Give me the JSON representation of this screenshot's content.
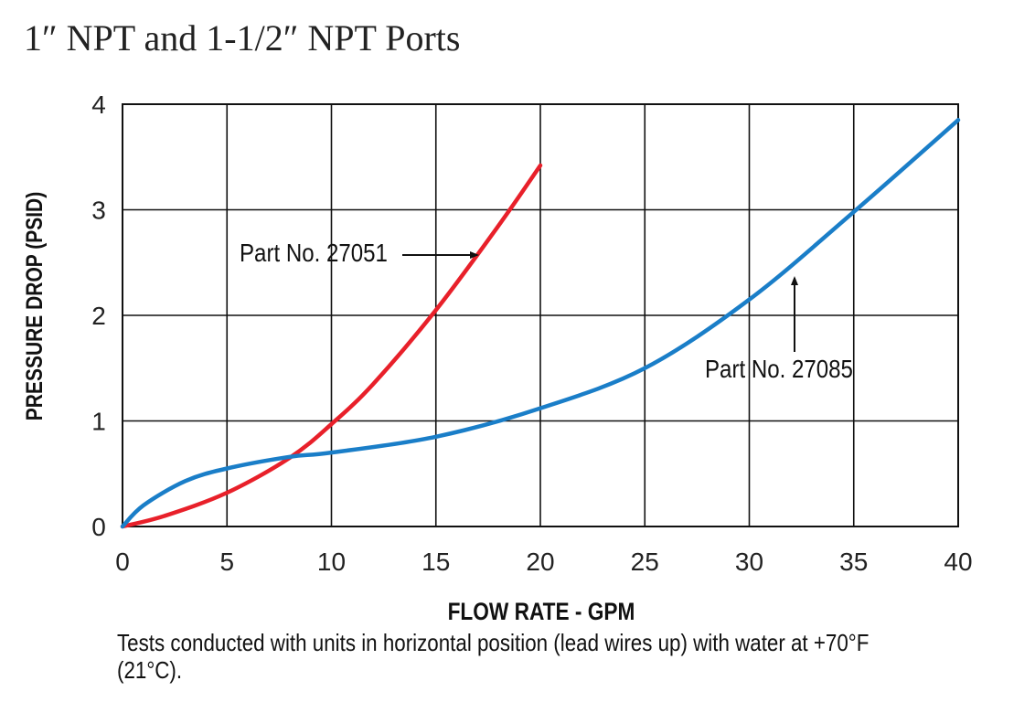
{
  "title": "1″ NPT and 1-1/2″ NPT Ports",
  "caption": "Tests conducted with units in horizontal position (lead wires up) with water at +70°F (21°C).",
  "chart_data": {
    "type": "line",
    "xlabel": "FLOW RATE - GPM",
    "ylabel": "PRESSURE DROP (PSID)",
    "xlim": [
      0,
      40
    ],
    "ylim": [
      0,
      4
    ],
    "xticks": [
      0,
      5,
      10,
      15,
      20,
      25,
      30,
      35,
      40
    ],
    "yticks": [
      0,
      1,
      2,
      3,
      4
    ],
    "grid": true,
    "series": [
      {
        "name": "Part No. 27051",
        "color": "#e8202a",
        "x": [
          0,
          2,
          5,
          8,
          10,
          12,
          15,
          18,
          20
        ],
        "y": [
          0,
          0.1,
          0.32,
          0.65,
          0.97,
          1.35,
          2.05,
          2.85,
          3.42
        ]
      },
      {
        "name": "Part No. 27085",
        "color": "#1a7ec8",
        "x": [
          0,
          1,
          3,
          5,
          8,
          10,
          15,
          20,
          25,
          30,
          35,
          40
        ],
        "y": [
          0,
          0.2,
          0.43,
          0.55,
          0.66,
          0.7,
          0.85,
          1.12,
          1.5,
          2.15,
          2.98,
          3.85
        ]
      }
    ],
    "annotations": [
      {
        "text": "Part No. 27051",
        "series": 0,
        "arrow": "right"
      },
      {
        "text": "Part No. 27085",
        "series": 1,
        "arrow": "up"
      }
    ]
  }
}
